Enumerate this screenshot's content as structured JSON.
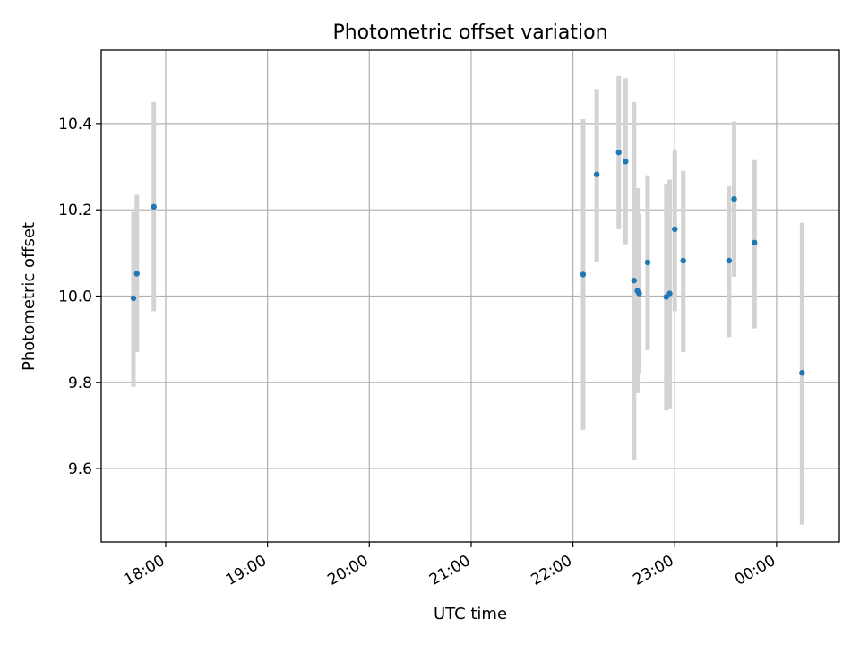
{
  "chart_data": {
    "type": "scatter",
    "title": "Photometric offset variation",
    "xlabel": "UTC time",
    "ylabel": "Photometric offset",
    "x_ticks": [
      "18:00",
      "19:00",
      "20:00",
      "21:00",
      "22:00",
      "23:00",
      "00:00"
    ],
    "y_ticks": [
      "9.6",
      "9.8",
      "10.0",
      "10.2",
      "10.4"
    ],
    "xlim": [
      "17:22",
      "00:37"
    ],
    "ylim": [
      9.43,
      10.57
    ],
    "grid": true,
    "colors": {
      "point": "#1f77b4",
      "errorbar": "#d3d3d3",
      "grid": "#b0b0b0"
    },
    "points": [
      {
        "time": "17:41",
        "y": 9.995,
        "err_low": 9.79,
        "err_high": 10.195
      },
      {
        "time": "17:43",
        "y": 10.052,
        "err_low": 9.87,
        "err_high": 10.235
      },
      {
        "time": "17:53",
        "y": 10.207,
        "err_low": 9.965,
        "err_high": 10.45
      },
      {
        "time": "22:06",
        "y": 10.05,
        "err_low": 9.69,
        "err_high": 10.41
      },
      {
        "time": "22:14",
        "y": 10.282,
        "err_low": 10.08,
        "err_high": 10.48
      },
      {
        "time": "22:27",
        "y": 10.333,
        "err_low": 10.155,
        "err_high": 10.51
      },
      {
        "time": "22:31",
        "y": 10.312,
        "err_low": 10.12,
        "err_high": 10.505
      },
      {
        "time": "22:36",
        "y": 10.036,
        "err_low": 9.62,
        "err_high": 10.45
      },
      {
        "time": "22:38",
        "y": 10.012,
        "err_low": 9.775,
        "err_high": 10.25
      },
      {
        "time": "22:39",
        "y": 10.006,
        "err_low": 9.82,
        "err_high": 10.19
      },
      {
        "time": "22:44",
        "y": 10.078,
        "err_low": 9.875,
        "err_high": 10.28
      },
      {
        "time": "22:55",
        "y": 9.998,
        "err_low": 9.735,
        "err_high": 10.26
      },
      {
        "time": "22:57",
        "y": 10.006,
        "err_low": 9.74,
        "err_high": 10.27
      },
      {
        "time": "23:00",
        "y": 10.155,
        "err_low": 9.965,
        "err_high": 10.34
      },
      {
        "time": "23:05",
        "y": 10.082,
        "err_low": 9.87,
        "err_high": 10.29
      },
      {
        "time": "23:32",
        "y": 10.082,
        "err_low": 9.905,
        "err_high": 10.255
      },
      {
        "time": "23:35",
        "y": 10.225,
        "err_low": 10.045,
        "err_high": 10.405
      },
      {
        "time": "23:47",
        "y": 10.124,
        "err_low": 9.925,
        "err_high": 10.315
      },
      {
        "time": "00:15",
        "y": 9.822,
        "err_low": 9.47,
        "err_high": 10.17
      }
    ]
  }
}
